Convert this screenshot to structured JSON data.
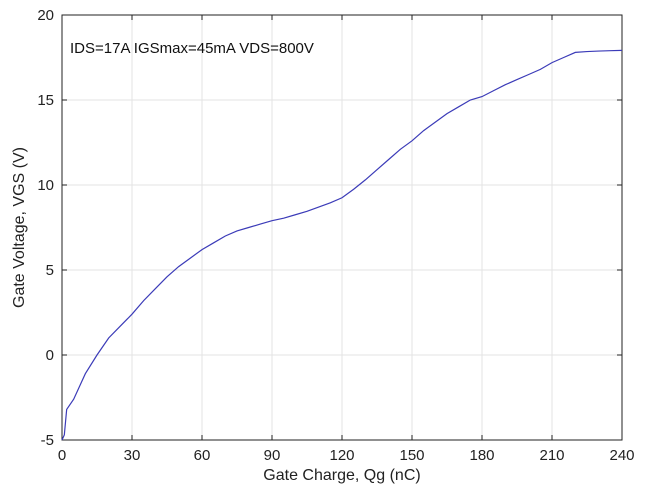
{
  "chart_data": {
    "type": "line",
    "title": "",
    "annotation": "IDS=17A IGSmax=45mA VDS=800V",
    "xlabel": "Gate Charge, Qg (nC)",
    "ylabel": "Gate Voltage, VGS (V)",
    "xlim": [
      0,
      240
    ],
    "ylim": [
      -5,
      20
    ],
    "xticks": [
      0,
      30,
      60,
      90,
      120,
      150,
      180,
      210,
      240
    ],
    "yticks": [
      -5,
      0,
      5,
      10,
      15,
      20
    ],
    "grid": true,
    "colors": {
      "series": "#3b3bb8",
      "axis": "#222222",
      "grid": "#e3e3e3"
    },
    "series": [
      {
        "x": [
          0,
          1,
          2,
          5,
          10,
          15,
          20,
          25,
          30,
          35,
          40,
          45,
          50,
          55,
          60,
          65,
          70,
          75,
          80,
          85,
          90,
          95,
          100,
          105,
          110,
          115,
          120,
          125,
          130,
          135,
          140,
          145,
          150,
          155,
          160,
          165,
          170,
          175,
          180,
          185,
          190,
          195,
          200,
          205,
          210,
          215,
          220,
          225,
          230,
          235,
          240
        ],
        "y": [
          -5,
          -4.7,
          -3.2,
          -2.6,
          -1.1,
          0.0,
          1.0,
          1.7,
          2.4,
          3.2,
          3.9,
          4.6,
          5.2,
          5.7,
          6.2,
          6.6,
          7.0,
          7.3,
          7.5,
          7.7,
          7.9,
          8.05,
          8.25,
          8.45,
          8.7,
          8.95,
          9.25,
          9.75,
          10.3,
          10.9,
          11.5,
          12.1,
          12.6,
          13.2,
          13.7,
          14.2,
          14.6,
          15.0,
          15.2,
          15.55,
          15.9,
          16.2,
          16.5,
          16.8,
          17.2,
          17.5,
          17.8,
          17.85,
          17.88,
          17.9,
          17.92
        ]
      }
    ]
  }
}
